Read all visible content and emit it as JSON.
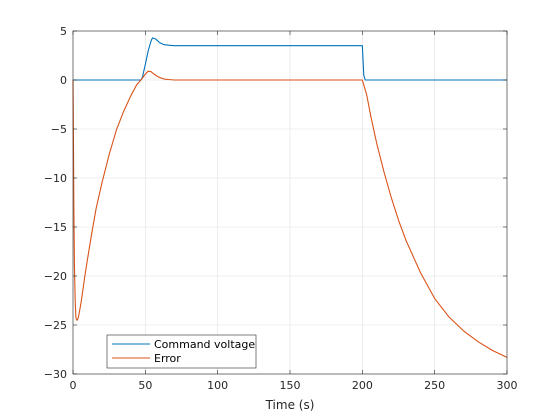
{
  "chart_data": {
    "type": "line",
    "title": "",
    "xlabel": "Time (s)",
    "ylabel": "",
    "xlim": [
      0,
      300
    ],
    "ylim": [
      -30,
      5
    ],
    "xticks": [
      0,
      50,
      100,
      150,
      200,
      250,
      300
    ],
    "yticks": [
      -30,
      -25,
      -20,
      -15,
      -10,
      -5,
      0,
      5
    ],
    "grid": true,
    "legend_position": "bottom-left",
    "series": [
      {
        "name": "Command voltage",
        "color": "#0072BD",
        "x": [
          0,
          47,
          48,
          50,
          52,
          54,
          55,
          57,
          60,
          63,
          66,
          70,
          80,
          100,
          150,
          199.5,
          200,
          200.5,
          201,
          202,
          210,
          250,
          300
        ],
        "y": [
          0,
          0,
          0.3,
          1.6,
          3.0,
          4.0,
          4.3,
          4.2,
          3.8,
          3.6,
          3.55,
          3.5,
          3.5,
          3.5,
          3.5,
          3.5,
          3.5,
          2.0,
          0.5,
          0,
          0,
          0,
          0
        ]
      },
      {
        "name": "Error",
        "color": "#D95319",
        "x": [
          0,
          0.3,
          0.6,
          1,
          1.5,
          2,
          2.5,
          3,
          3.5,
          4,
          5,
          6,
          8,
          10,
          13,
          16,
          20,
          25,
          30,
          35,
          40,
          44,
          47,
          50,
          52,
          54,
          56,
          58,
          60,
          63,
          66,
          70,
          80,
          100,
          150,
          200,
          203,
          206,
          210,
          215,
          220,
          225,
          230,
          240,
          250,
          260,
          270,
          280,
          290,
          300
        ],
        "y": [
          0,
          -6,
          -13,
          -19,
          -22.5,
          -24.2,
          -24.5,
          -24.5,
          -24.3,
          -24.0,
          -23.2,
          -22.3,
          -20.2,
          -18.3,
          -15.6,
          -13.1,
          -10.5,
          -7.6,
          -5.1,
          -3.2,
          -1.6,
          -0.5,
          0.0,
          0.6,
          0.9,
          0.85,
          0.6,
          0.4,
          0.25,
          0.1,
          0.05,
          0,
          0,
          0,
          0,
          0,
          -1.5,
          -3.8,
          -6.5,
          -9.4,
          -12.0,
          -14.3,
          -16.3,
          -19.6,
          -22.3,
          -24.2,
          -25.6,
          -26.7,
          -27.6,
          -28.3
        ]
      }
    ]
  }
}
